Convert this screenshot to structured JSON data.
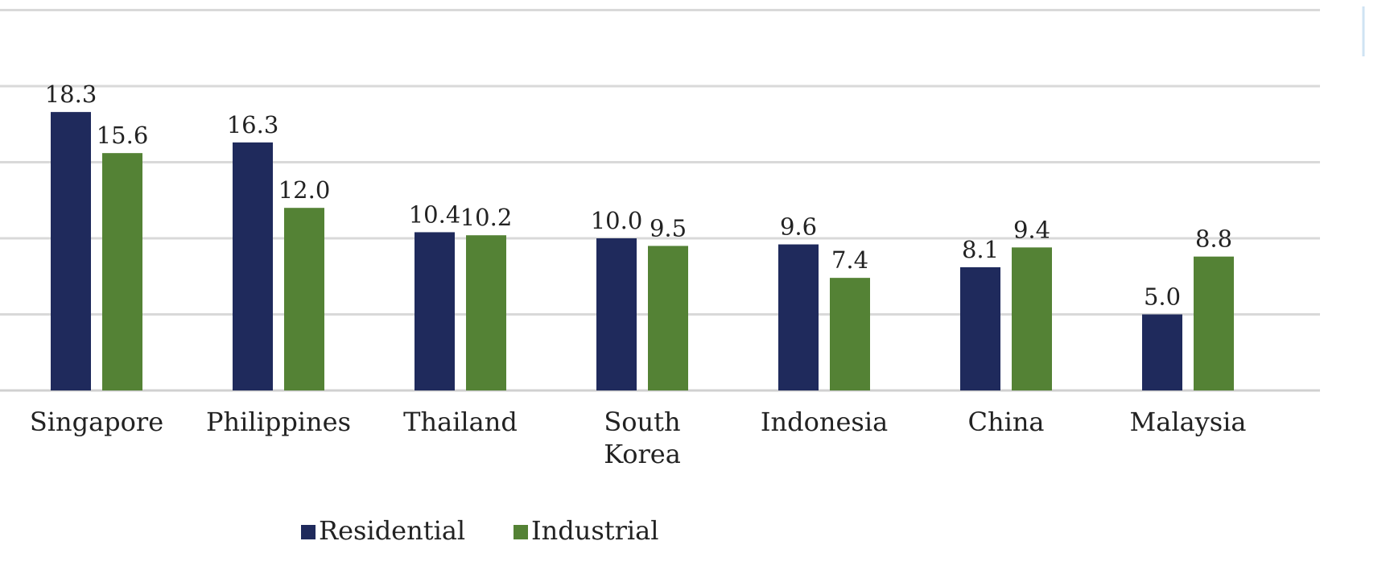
{
  "chart_data": {
    "type": "bar",
    "title": "",
    "xlabel": "",
    "ylabel": "",
    "categories": [
      [
        "Singapore"
      ],
      [
        "Philippines"
      ],
      [
        "Thailand"
      ],
      [
        "South",
        "Korea"
      ],
      [
        "Indonesia"
      ],
      [
        "China"
      ],
      [
        "Malaysia"
      ]
    ],
    "series": [
      {
        "name": "Residential",
        "color": "#1f2a5c",
        "values": [
          18.3,
          16.3,
          10.4,
          10.0,
          9.6,
          8.1,
          5.0
        ],
        "labels": [
          "18.3",
          "16.3",
          "10.4",
          "10.0",
          "9.6",
          "8.1",
          "5.0"
        ]
      },
      {
        "name": "Industrial",
        "color": "#548235",
        "values": [
          15.6,
          12.0,
          10.2,
          9.5,
          7.4,
          9.4,
          8.8
        ],
        "labels": [
          "15.6",
          "12.0",
          "10.2",
          "9.5",
          "7.4",
          "9.4",
          "8.8"
        ]
      }
    ],
    "ylim": [
      0,
      25
    ],
    "grid": true,
    "legend_position": "bottom"
  }
}
